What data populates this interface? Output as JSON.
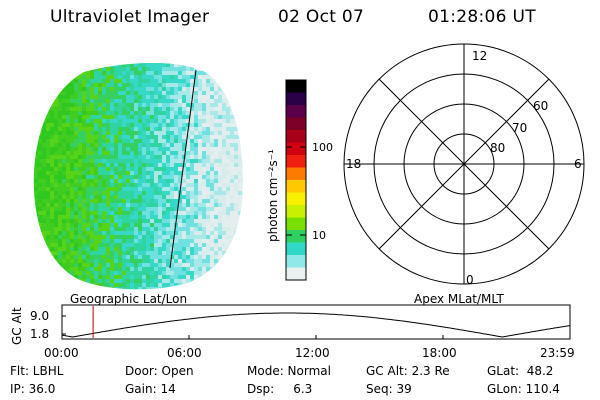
{
  "header": {
    "title": "Ultraviolet Imager",
    "date": "02 Oct 07",
    "time": "01:28:06 UT"
  },
  "colorbar": {
    "unit_label": "photon cm⁻²s⁻¹",
    "ticks": [
      "100",
      "10"
    ],
    "colors": [
      "#000000",
      "#2a0048",
      "#5a004a",
      "#7a0028",
      "#a80018",
      "#d00010",
      "#f02010",
      "#ff7a00",
      "#ffc800",
      "#f8f000",
      "#c8f000",
      "#78e000",
      "#30d060",
      "#30d8c8",
      "#90e8e8",
      "#e8f0f0"
    ]
  },
  "polar_grid": {
    "mlt_labels": {
      "top": "12",
      "left": "18",
      "right": "6",
      "bottom": "0"
    },
    "lat_labels": [
      "80",
      "70",
      "60"
    ]
  },
  "timeseries": {
    "left_label": "Geographic Lat/Lon",
    "right_label": "Apex MLat/MLT",
    "y_axis_title": "GC Alt",
    "y_ticks": [
      "9.0",
      "1.8"
    ],
    "x_ticks": [
      "00:00",
      "06:00",
      "12:00",
      "18:00",
      "23:59"
    ],
    "current_time_marker_hours": 1.47,
    "curve_color": "#000000",
    "marker_color": "#c00000"
  },
  "info_panel": [
    {
      "key": "flt",
      "text": "Flt: LBHL"
    },
    {
      "key": "door",
      "text": "Door: Open"
    },
    {
      "key": "mode",
      "text": "Mode: Normal"
    },
    {
      "key": "gcalt",
      "text": "GC Alt: 2.3 Re"
    },
    {
      "key": "glat",
      "text": "GLat:  48.2"
    },
    {
      "key": "ip",
      "text": "IP: 36.0"
    },
    {
      "key": "gain",
      "text": "Gain: 14"
    },
    {
      "key": "dsp",
      "text": "Dsp:     6.3"
    },
    {
      "key": "seq",
      "text": "Seq: 39"
    },
    {
      "key": "glon",
      "text": "GLon: 110.4"
    }
  ],
  "image_palette": [
    "#2ec820",
    "#40cc20",
    "#58d418",
    "#36d060",
    "#30d4a0",
    "#38d8c8",
    "#70e0e0",
    "#a8e8e8",
    "#d8ecec",
    "#e4eeee"
  ]
}
